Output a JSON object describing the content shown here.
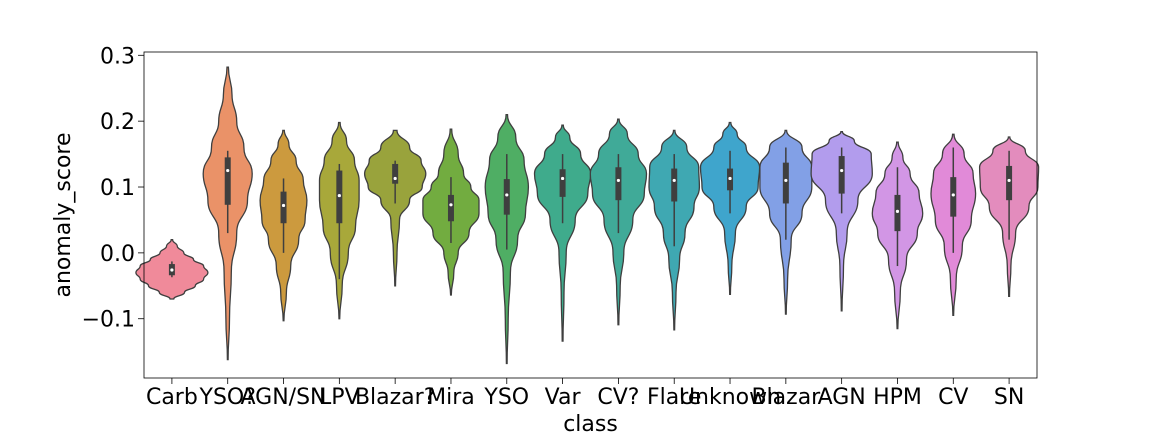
{
  "chart_data": {
    "type": "violin",
    "xlabel": "class",
    "ylabel": "anomaly_score",
    "ylim": [
      -0.19,
      0.305
    ],
    "yticks": [
      -0.1,
      0.0,
      0.1,
      0.2,
      0.3
    ],
    "ytick_labels": [
      "−0.1",
      "0.0",
      "0.1",
      "0.2",
      "0.3"
    ],
    "grid": false,
    "categories": [
      "Carb",
      "YSO?",
      "AGN/SN",
      "LPV",
      "Blazar?",
      "Mira",
      "YSO",
      "Var",
      "CV?",
      "Flare",
      "Unknown",
      "Blazar",
      "AGN",
      "HPM",
      "CV",
      "SN"
    ],
    "violins": [
      {
        "class": "Carb",
        "color": "#f08a9a",
        "min": -0.07,
        "max": 0.02,
        "q1": -0.034,
        "median": -0.026,
        "q3": -0.017,
        "wlo": -0.037,
        "whi": -0.013,
        "profile": [
          [
            -0.07,
            0.05
          ],
          [
            -0.06,
            0.35
          ],
          [
            -0.05,
            0.65
          ],
          [
            -0.04,
            0.88
          ],
          [
            -0.03,
            1.0
          ],
          [
            -0.02,
            0.88
          ],
          [
            -0.01,
            0.6
          ],
          [
            0.0,
            0.33
          ],
          [
            0.01,
            0.15
          ],
          [
            0.02,
            0.02
          ]
        ]
      },
      {
        "class": "YSO?",
        "color": "#ea9268",
        "min": -0.162,
        "max": 0.282,
        "q1": 0.073,
        "median": 0.125,
        "q3": 0.145,
        "wlo": 0.03,
        "whi": 0.155,
        "profile": [
          [
            -0.162,
            0.01
          ],
          [
            -0.1,
            0.05
          ],
          [
            -0.03,
            0.1
          ],
          [
            0.03,
            0.25
          ],
          [
            0.08,
            0.55
          ],
          [
            0.12,
            0.68
          ],
          [
            0.16,
            0.45
          ],
          [
            0.2,
            0.25
          ],
          [
            0.24,
            0.12
          ],
          [
            0.282,
            0.02
          ]
        ]
      },
      {
        "class": "AGN/SN",
        "color": "#cc9a3e",
        "min": -0.103,
        "max": 0.186,
        "q1": 0.045,
        "median": 0.072,
        "q3": 0.093,
        "wlo": 0.0,
        "whi": 0.113,
        "profile": [
          [
            -0.103,
            0.01
          ],
          [
            -0.06,
            0.08
          ],
          [
            -0.02,
            0.2
          ],
          [
            0.02,
            0.42
          ],
          [
            0.05,
            0.6
          ],
          [
            0.08,
            0.65
          ],
          [
            0.11,
            0.55
          ],
          [
            0.14,
            0.35
          ],
          [
            0.165,
            0.15
          ],
          [
            0.186,
            0.02
          ]
        ]
      },
      {
        "class": "LPV",
        "color": "#a8a83a",
        "min": -0.1,
        "max": 0.198,
        "q1": 0.045,
        "median": 0.087,
        "q3": 0.125,
        "wlo": -0.04,
        "whi": 0.135,
        "profile": [
          [
            -0.1,
            0.01
          ],
          [
            -0.05,
            0.08
          ],
          [
            0.0,
            0.25
          ],
          [
            0.04,
            0.45
          ],
          [
            0.08,
            0.55
          ],
          [
            0.11,
            0.55
          ],
          [
            0.14,
            0.42
          ],
          [
            0.17,
            0.2
          ],
          [
            0.198,
            0.02
          ]
        ]
      },
      {
        "class": "Blazar?",
        "color": "#99a33c",
        "min": -0.05,
        "max": 0.186,
        "q1": 0.105,
        "median": 0.113,
        "q3": 0.135,
        "wlo": 0.075,
        "whi": 0.14,
        "profile": [
          [
            -0.05,
            0.01
          ],
          [
            0.0,
            0.05
          ],
          [
            0.05,
            0.12
          ],
          [
            0.08,
            0.4
          ],
          [
            0.1,
            0.75
          ],
          [
            0.12,
            0.85
          ],
          [
            0.14,
            0.72
          ],
          [
            0.16,
            0.4
          ],
          [
            0.186,
            0.05
          ]
        ]
      },
      {
        "class": "Mira",
        "color": "#72ac40",
        "min": -0.064,
        "max": 0.188,
        "q1": 0.048,
        "median": 0.073,
        "q3": 0.088,
        "wlo": 0.015,
        "whi": 0.115,
        "profile": [
          [
            -0.064,
            0.01
          ],
          [
            -0.03,
            0.08
          ],
          [
            0.0,
            0.2
          ],
          [
            0.03,
            0.5
          ],
          [
            0.06,
            0.78
          ],
          [
            0.08,
            0.78
          ],
          [
            0.1,
            0.55
          ],
          [
            0.12,
            0.35
          ],
          [
            0.15,
            0.2
          ],
          [
            0.188,
            0.02
          ]
        ]
      },
      {
        "class": "YSO",
        "color": "#4fae64",
        "min": -0.168,
        "max": 0.21,
        "q1": 0.058,
        "median": 0.088,
        "q3": 0.112,
        "wlo": 0.005,
        "whi": 0.15,
        "profile": [
          [
            -0.168,
            0.01
          ],
          [
            -0.1,
            0.04
          ],
          [
            -0.03,
            0.1
          ],
          [
            0.02,
            0.3
          ],
          [
            0.06,
            0.52
          ],
          [
            0.1,
            0.6
          ],
          [
            0.14,
            0.48
          ],
          [
            0.175,
            0.25
          ],
          [
            0.21,
            0.02
          ]
        ]
      },
      {
        "class": "Var",
        "color": "#3fab8c",
        "min": -0.134,
        "max": 0.194,
        "q1": 0.085,
        "median": 0.113,
        "q3": 0.127,
        "wlo": 0.045,
        "whi": 0.15,
        "profile": [
          [
            -0.134,
            0.01
          ],
          [
            -0.06,
            0.04
          ],
          [
            0.0,
            0.1
          ],
          [
            0.05,
            0.35
          ],
          [
            0.09,
            0.7
          ],
          [
            0.12,
            0.78
          ],
          [
            0.15,
            0.5
          ],
          [
            0.175,
            0.2
          ],
          [
            0.194,
            0.02
          ]
        ]
      },
      {
        "class": "CV?",
        "color": "#40aa98",
        "min": -0.109,
        "max": 0.203,
        "q1": 0.08,
        "median": 0.11,
        "q3": 0.13,
        "wlo": 0.03,
        "whi": 0.15,
        "profile": [
          [
            -0.109,
            0.01
          ],
          [
            -0.05,
            0.05
          ],
          [
            0.0,
            0.15
          ],
          [
            0.05,
            0.4
          ],
          [
            0.09,
            0.72
          ],
          [
            0.12,
            0.78
          ],
          [
            0.15,
            0.55
          ],
          [
            0.18,
            0.25
          ],
          [
            0.203,
            0.02
          ]
        ]
      },
      {
        "class": "Flare",
        "color": "#3fa8b2",
        "min": -0.117,
        "max": 0.186,
        "q1": 0.078,
        "median": 0.11,
        "q3": 0.128,
        "wlo": 0.01,
        "whi": 0.15,
        "profile": [
          [
            -0.117,
            0.01
          ],
          [
            -0.06,
            0.05
          ],
          [
            -0.01,
            0.15
          ],
          [
            0.03,
            0.3
          ],
          [
            0.07,
            0.55
          ],
          [
            0.1,
            0.7
          ],
          [
            0.13,
            0.68
          ],
          [
            0.16,
            0.35
          ],
          [
            0.186,
            0.02
          ]
        ]
      },
      {
        "class": "Unknown",
        "color": "#3fa5cc",
        "min": -0.063,
        "max": 0.198,
        "q1": 0.095,
        "median": 0.113,
        "q3": 0.128,
        "wlo": 0.06,
        "whi": 0.155,
        "profile": [
          [
            -0.063,
            0.01
          ],
          [
            -0.02,
            0.05
          ],
          [
            0.03,
            0.15
          ],
          [
            0.07,
            0.45
          ],
          [
            0.1,
            0.78
          ],
          [
            0.13,
            0.82
          ],
          [
            0.16,
            0.45
          ],
          [
            0.18,
            0.2
          ],
          [
            0.198,
            0.02
          ]
        ]
      },
      {
        "class": "Blazar",
        "color": "#82a0e6",
        "min": -0.093,
        "max": 0.186,
        "q1": 0.075,
        "median": 0.11,
        "q3": 0.137,
        "wlo": 0.02,
        "whi": 0.16,
        "profile": [
          [
            -0.093,
            0.01
          ],
          [
            -0.04,
            0.05
          ],
          [
            0.02,
            0.15
          ],
          [
            0.06,
            0.45
          ],
          [
            0.1,
            0.72
          ],
          [
            0.13,
            0.72
          ],
          [
            0.16,
            0.45
          ],
          [
            0.186,
            0.02
          ]
        ]
      },
      {
        "class": "AGN",
        "color": "#b29ced",
        "min": -0.088,
        "max": 0.184,
        "q1": 0.09,
        "median": 0.125,
        "q3": 0.147,
        "wlo": 0.06,
        "whi": 0.16,
        "profile": [
          [
            -0.088,
            0.01
          ],
          [
            -0.02,
            0.05
          ],
          [
            0.03,
            0.15
          ],
          [
            0.08,
            0.45
          ],
          [
            0.12,
            0.85
          ],
          [
            0.15,
            0.82
          ],
          [
            0.17,
            0.35
          ],
          [
            0.184,
            0.02
          ]
        ]
      },
      {
        "class": "HPM",
        "color": "#d296e5",
        "min": -0.115,
        "max": 0.168,
        "q1": 0.033,
        "median": 0.063,
        "q3": 0.088,
        "wlo": -0.02,
        "whi": 0.13,
        "profile": [
          [
            -0.115,
            0.01
          ],
          [
            -0.06,
            0.08
          ],
          [
            -0.01,
            0.25
          ],
          [
            0.03,
            0.55
          ],
          [
            0.06,
            0.7
          ],
          [
            0.09,
            0.6
          ],
          [
            0.12,
            0.35
          ],
          [
            0.145,
            0.15
          ],
          [
            0.168,
            0.02
          ]
        ]
      },
      {
        "class": "CV",
        "color": "#e18ad8",
        "min": -0.095,
        "max": 0.18,
        "q1": 0.055,
        "median": 0.088,
        "q3": 0.115,
        "wlo": 0.0,
        "whi": 0.16,
        "profile": [
          [
            -0.095,
            0.01
          ],
          [
            -0.04,
            0.08
          ],
          [
            0.01,
            0.25
          ],
          [
            0.05,
            0.5
          ],
          [
            0.09,
            0.62
          ],
          [
            0.12,
            0.55
          ],
          [
            0.15,
            0.3
          ],
          [
            0.18,
            0.02
          ]
        ]
      },
      {
        "class": "SN",
        "color": "#e38cbd",
        "min": -0.066,
        "max": 0.176,
        "q1": 0.08,
        "median": 0.11,
        "q3": 0.132,
        "wlo": 0.02,
        "whi": 0.155,
        "profile": [
          [
            -0.066,
            0.01
          ],
          [
            -0.02,
            0.05
          ],
          [
            0.03,
            0.18
          ],
          [
            0.07,
            0.55
          ],
          [
            0.1,
            0.8
          ],
          [
            0.13,
            0.82
          ],
          [
            0.155,
            0.45
          ],
          [
            0.176,
            0.02
          ]
        ]
      }
    ]
  }
}
